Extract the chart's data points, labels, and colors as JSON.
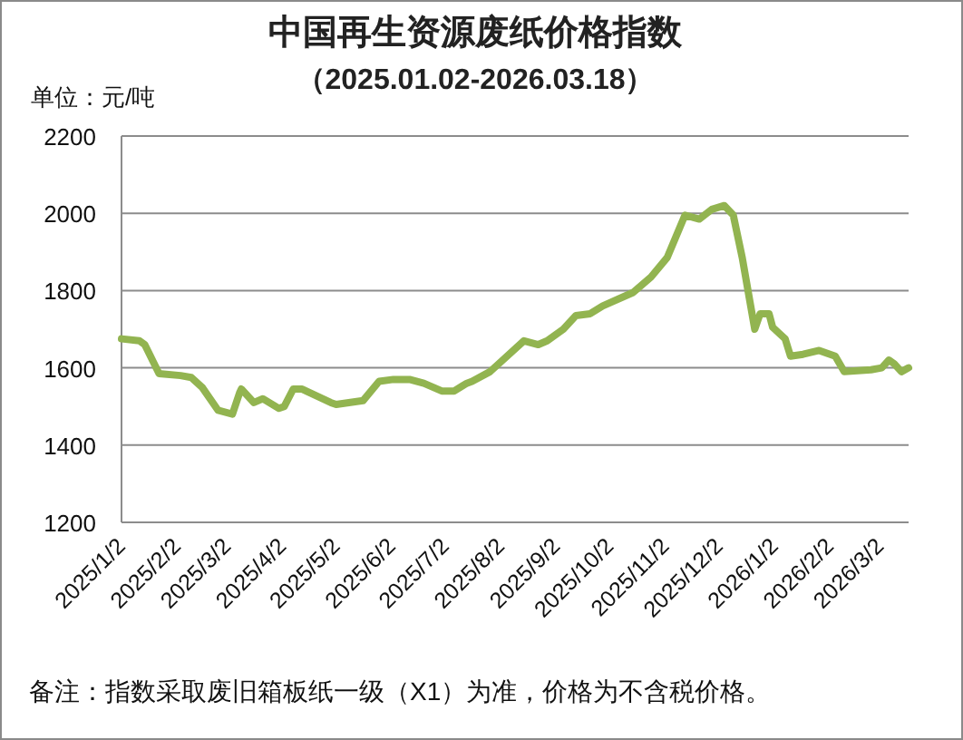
{
  "chart_data": {
    "type": "line",
    "title": "中国再生资源废纸价格指数",
    "subtitle": "（2025.01.02-2026.03.18）",
    "ylabel": "单位：元/吨",
    "annotations": [
      "备注：指数采取废旧箱板纸一级（X1）为准，价格为不含税价格。"
    ],
    "x": [
      "2025-01-02",
      "2025-01-12",
      "2025-01-15",
      "2025-01-23",
      "2025-02-04",
      "2025-02-10",
      "2025-02-16",
      "2025-02-25",
      "2025-03-05",
      "2025-03-09",
      "2025-03-10",
      "2025-03-17",
      "2025-03-22",
      "2025-03-31",
      "2025-04-03",
      "2025-04-08",
      "2025-04-13",
      "2025-04-29",
      "2025-05-02",
      "2025-05-17",
      "2025-05-26",
      "2025-06-03",
      "2025-06-12",
      "2025-06-20",
      "2025-06-30",
      "2025-07-07",
      "2025-07-14",
      "2025-07-17",
      "2025-07-27",
      "2025-08-15",
      "2025-08-23",
      "2025-08-28",
      "2025-09-06",
      "2025-09-13",
      "2025-09-21",
      "2025-09-28",
      "2025-10-15",
      "2025-10-25",
      "2025-11-03",
      "2025-11-13",
      "2025-11-21",
      "2025-11-28",
      "2025-12-05",
      "2025-12-10",
      "2025-12-15",
      "2025-12-22",
      "2025-12-25",
      "2025-12-30",
      "2026-01-01",
      "2026-01-08",
      "2026-01-11",
      "2026-01-18",
      "2026-01-27",
      "2026-02-05",
      "2026-02-10",
      "2026-02-25",
      "2026-03-03",
      "2026-03-07",
      "2026-03-10",
      "2026-03-14",
      "2026-03-18"
    ],
    "values": [
      1675,
      1670,
      1660,
      1585,
      1580,
      1575,
      1550,
      1490,
      1480,
      1535,
      1545,
      1510,
      1520,
      1495,
      1500,
      1545,
      1545,
      1510,
      1505,
      1515,
      1565,
      1570,
      1570,
      1560,
      1540,
      1540,
      1560,
      1565,
      1590,
      1670,
      1660,
      1670,
      1700,
      1735,
      1740,
      1760,
      1795,
      1835,
      1885,
      1995,
      1985,
      2010,
      2020,
      1995,
      1885,
      1700,
      1740,
      1740,
      1705,
      1675,
      1630,
      1635,
      1645,
      1630,
      1590,
      1595,
      1600,
      1620,
      1610,
      1590,
      1600
    ],
    "color": "#92b450",
    "line_style": "solid",
    "xlim": [
      "2025-01-02",
      "2026-03-18"
    ],
    "xticks": [
      {
        "value": "2025-01-02",
        "label": "2025/1/2"
      },
      {
        "value": "2025-02-02",
        "label": "2025/2/2"
      },
      {
        "value": "2025-03-02",
        "label": "2025/3/2"
      },
      {
        "value": "2025-04-02",
        "label": "2025/4/2"
      },
      {
        "value": "2025-05-02",
        "label": "2025/5/2"
      },
      {
        "value": "2025-06-02",
        "label": "2025/6/2"
      },
      {
        "value": "2025-07-02",
        "label": "2025/7/2"
      },
      {
        "value": "2025-08-02",
        "label": "2025/8/2"
      },
      {
        "value": "2025-09-02",
        "label": "2025/9/2"
      },
      {
        "value": "2025-10-02",
        "label": "2025/10/2"
      },
      {
        "value": "2025-11-02",
        "label": "2025/11/2"
      },
      {
        "value": "2025-12-02",
        "label": "2025/12/2"
      },
      {
        "value": "2026-01-02",
        "label": "2026/1/2"
      },
      {
        "value": "2026-02-02",
        "label": "2026/2/2"
      },
      {
        "value": "2026-03-02",
        "label": "2026/3/2"
      }
    ],
    "ylim": [
      1200,
      2200
    ],
    "yticks": [
      1200,
      1400,
      1600,
      1800,
      2000,
      2200
    ],
    "grid": "y"
  }
}
